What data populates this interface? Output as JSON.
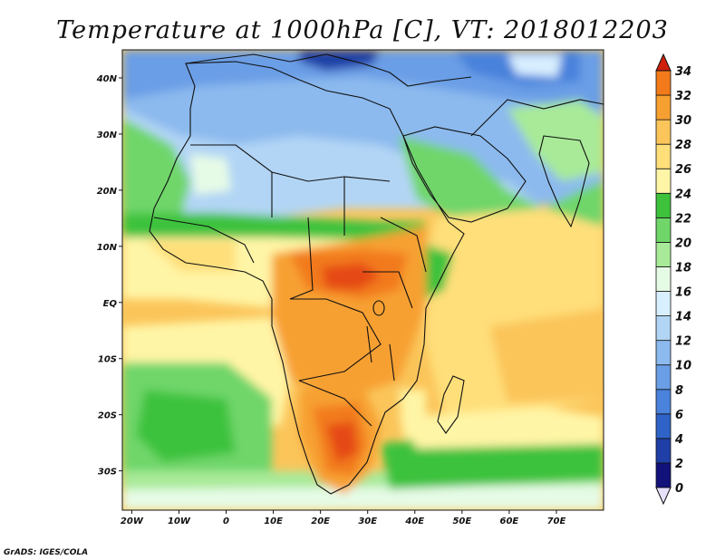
{
  "map": {
    "title": "Temperature at 1000hPa [C], VT: 2018012203",
    "credit": "GrADS: IGES/COLA",
    "lon_ticks": [
      "20W",
      "10W",
      "0",
      "10E",
      "20E",
      "30E",
      "40E",
      "50E",
      "60E",
      "70E"
    ],
    "lat_ticks": [
      "40N",
      "30N",
      "20N",
      "10N",
      "EQ",
      "10S",
      "20S",
      "30S"
    ],
    "extent": {
      "lon_min": -22,
      "lon_max": 80,
      "lat_min": -37,
      "lat_max": 45
    }
  },
  "colorbar": {
    "levels": [
      "0",
      "2",
      "4",
      "6",
      "8",
      "10",
      "12",
      "14",
      "16",
      "18",
      "20",
      "22",
      "24",
      "26",
      "28",
      "30",
      "32",
      "34"
    ],
    "colors": [
      "#12127a",
      "#1f3fa6",
      "#2f63c8",
      "#4a82dc",
      "#6a9ee6",
      "#8cbaee",
      "#b2d5f5",
      "#d8efff",
      "#e6fbe6",
      "#a8ea98",
      "#70d66a",
      "#3ec23c",
      "#fff5a6",
      "#ffdf7a",
      "#fbc55a",
      "#f7a032",
      "#f27a1a",
      "#e54a12",
      "#d0200c"
    ]
  }
}
